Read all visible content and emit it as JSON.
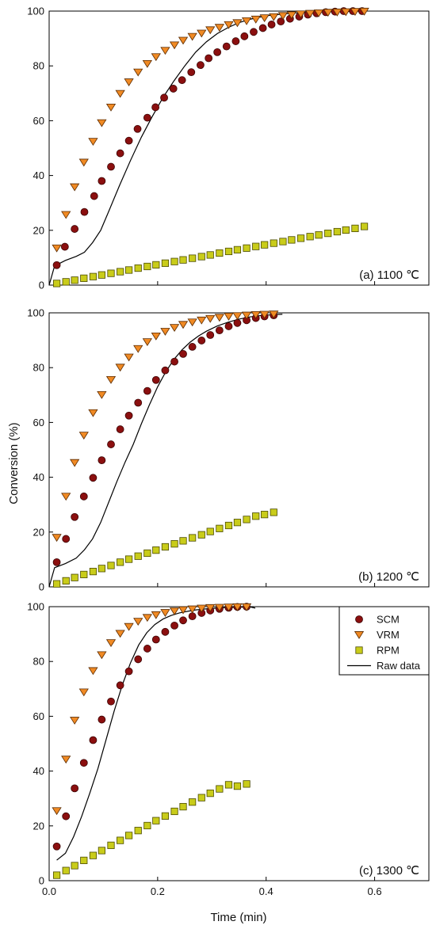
{
  "chart_data": {
    "type": "scatter",
    "ylabel": "Conversion (%)",
    "xlabel": "Time (min)",
    "xlim": [
      0,
      0.7
    ],
    "ylim": [
      0,
      100
    ],
    "xticks": [
      "0.0",
      "0.2",
      "0.4",
      "0.6"
    ],
    "yticks": [
      "0",
      "20",
      "40",
      "60",
      "80",
      "100"
    ],
    "legend": {
      "placement": "top-right of panel (c)",
      "entries": [
        "SCM",
        "VRM",
        "RPM",
        "Raw data"
      ]
    },
    "colors": {
      "SCM": "#8b0f0f",
      "VRM": "#f08a24",
      "RPM": "#c9cc1a",
      "Raw data": "#000000"
    },
    "panels": [
      {
        "label": "(a) 1100 ℃",
        "series": [
          {
            "name": "SCM",
            "x": [
              0.014,
              0.029,
              0.047,
              0.065,
              0.083,
              0.097,
              0.114,
              0.131,
              0.147,
              0.163,
              0.181,
              0.196,
              0.212,
              0.229,
              0.245,
              0.262,
              0.279,
              0.294,
              0.31,
              0.327,
              0.344,
              0.36,
              0.377,
              0.394,
              0.41,
              0.427,
              0.444,
              0.461,
              0.477,
              0.493,
              0.51,
              0.527,
              0.543,
              0.56,
              0.577
            ],
            "y": [
              7.3,
              14.0,
              20.5,
              26.7,
              32.5,
              38.0,
              43.2,
              48.1,
              52.7,
              57.0,
              61.1,
              64.9,
              68.4,
              71.7,
              74.8,
              77.7,
              80.3,
              82.8,
              85.0,
              87.1,
              89.0,
              90.8,
              92.4,
              93.8,
              95.1,
              96.2,
              97.2,
              98.0,
              98.7,
              99.2,
              99.6,
              99.8,
              100.0,
              100.0,
              100.0
            ]
          },
          {
            "name": "VRM",
            "x": [
              0.014,
              0.031,
              0.047,
              0.064,
              0.081,
              0.097,
              0.114,
              0.131,
              0.147,
              0.164,
              0.181,
              0.197,
              0.214,
              0.231,
              0.247,
              0.264,
              0.281,
              0.297,
              0.314,
              0.331,
              0.347,
              0.364,
              0.381,
              0.397,
              0.414,
              0.431,
              0.447,
              0.464,
              0.481,
              0.497,
              0.514,
              0.531,
              0.547,
              0.564,
              0.581
            ],
            "y": [
              13.5,
              25.7,
              35.8,
              44.8,
              52.4,
              59.2,
              64.9,
              69.9,
              74.1,
              77.7,
              80.8,
              83.3,
              85.6,
              87.6,
              89.3,
              90.7,
              91.9,
              93.1,
              94.0,
              95.0,
              95.7,
              96.4,
              97.0,
              97.5,
              97.9,
              98.3,
              98.6,
              98.9,
              99.1,
              99.3,
              99.5,
              99.6,
              99.7,
              99.8,
              99.9
            ]
          },
          {
            "name": "RPM",
            "x": [
              0.014,
              0.031,
              0.047,
              0.064,
              0.081,
              0.097,
              0.114,
              0.131,
              0.147,
              0.164,
              0.181,
              0.197,
              0.214,
              0.231,
              0.247,
              0.264,
              0.281,
              0.297,
              0.314,
              0.331,
              0.347,
              0.364,
              0.381,
              0.397,
              0.414,
              0.431,
              0.447,
              0.464,
              0.481,
              0.497,
              0.514,
              0.531,
              0.547,
              0.564,
              0.581
            ],
            "y": [
              0.6,
              1.2,
              1.8,
              2.5,
              3.1,
              3.7,
              4.3,
              4.9,
              5.5,
              6.2,
              6.8,
              7.4,
              8.0,
              8.6,
              9.2,
              9.8,
              10.4,
              11.0,
              11.7,
              12.3,
              12.9,
              13.5,
              14.1,
              14.7,
              15.3,
              15.9,
              16.5,
              17.1,
              17.7,
              18.3,
              18.9,
              19.5,
              20.1,
              20.7,
              21.4
            ]
          },
          {
            "name": "Raw data",
            "x": [
              0.0,
              0.01,
              0.03,
              0.05,
              0.065,
              0.08,
              0.095,
              0.11,
              0.13,
              0.15,
              0.17,
              0.19,
              0.21,
              0.23,
              0.25,
              0.27,
              0.29,
              0.31,
              0.33,
              0.35,
              0.37,
              0.4,
              0.45,
              0.5,
              0.55,
              0.58
            ],
            "y": [
              0.0,
              7.0,
              9.0,
              10.5,
              12.0,
              15.5,
              20.0,
              27.0,
              36.5,
              45.5,
              54.0,
              61.5,
              68.5,
              74.5,
              80.0,
              85.0,
              88.8,
              91.8,
              94.0,
              95.8,
              97.0,
              98.3,
              99.3,
              99.7,
              99.9,
              100.0
            ]
          }
        ]
      },
      {
        "label": "(b) 1200 ℃",
        "series": [
          {
            "name": "SCM",
            "x": [
              0.014,
              0.031,
              0.047,
              0.064,
              0.081,
              0.097,
              0.114,
              0.131,
              0.147,
              0.164,
              0.181,
              0.197,
              0.214,
              0.231,
              0.247,
              0.264,
              0.281,
              0.297,
              0.314,
              0.331,
              0.347,
              0.364,
              0.381,
              0.397,
              0.414
            ],
            "y": [
              9.0,
              17.5,
              25.5,
              33.0,
              39.8,
              46.2,
              52.0,
              57.5,
              62.5,
              67.2,
              71.5,
              75.5,
              79.0,
              82.2,
              85.0,
              87.6,
              89.9,
              91.9,
              93.6,
              95.1,
              96.3,
              97.3,
              98.1,
              98.7,
              99.1
            ]
          },
          {
            "name": "VRM",
            "x": [
              0.014,
              0.031,
              0.047,
              0.064,
              0.081,
              0.097,
              0.114,
              0.131,
              0.147,
              0.164,
              0.181,
              0.197,
              0.214,
              0.231,
              0.247,
              0.264,
              0.281,
              0.297,
              0.314,
              0.331,
              0.347,
              0.364,
              0.381,
              0.397,
              0.414
            ],
            "y": [
              18.0,
              33.0,
              45.3,
              55.3,
              63.5,
              70.1,
              75.6,
              80.1,
              83.8,
              86.9,
              89.4,
              91.5,
              93.2,
              94.6,
              95.7,
              96.6,
              97.3,
              97.9,
              98.3,
              98.7,
              98.9,
              99.1,
              99.3,
              99.4,
              99.5
            ]
          },
          {
            "name": "RPM",
            "x": [
              0.014,
              0.031,
              0.047,
              0.064,
              0.081,
              0.097,
              0.114,
              0.131,
              0.147,
              0.164,
              0.181,
              0.197,
              0.214,
              0.231,
              0.247,
              0.264,
              0.281,
              0.297,
              0.314,
              0.331,
              0.347,
              0.364,
              0.381,
              0.397,
              0.414
            ],
            "y": [
              1.1,
              2.2,
              3.4,
              4.5,
              5.6,
              6.7,
              7.8,
              9.0,
              10.1,
              11.2,
              12.3,
              13.4,
              14.6,
              15.7,
              16.8,
              17.9,
              19.0,
              20.2,
              21.3,
              22.4,
              23.5,
              24.6,
              25.8,
              26.4,
              27.2
            ]
          },
          {
            "name": "Raw data",
            "x": [
              0.0,
              0.01,
              0.03,
              0.05,
              0.065,
              0.08,
              0.095,
              0.11,
              0.125,
              0.14,
              0.155,
              0.17,
              0.185,
              0.2,
              0.215,
              0.23,
              0.245,
              0.26,
              0.275,
              0.29,
              0.31,
              0.33,
              0.35,
              0.37,
              0.39,
              0.41,
              0.43
            ],
            "y": [
              0.0,
              7.0,
              8.5,
              10.5,
              13.5,
              17.5,
              23.5,
              31.0,
              38.5,
              45.5,
              52.0,
              59.5,
              66.5,
              73.0,
              78.5,
              83.0,
              86.5,
              89.3,
              91.5,
              93.3,
              95.2,
              96.6,
              97.7,
              98.5,
              99.0,
              99.3,
              99.5
            ]
          }
        ]
      },
      {
        "label": "(c) 1300 ℃",
        "series": [
          {
            "name": "SCM",
            "x": [
              0.014,
              0.031,
              0.047,
              0.064,
              0.081,
              0.097,
              0.114,
              0.131,
              0.147,
              0.164,
              0.181,
              0.197,
              0.214,
              0.231,
              0.247,
              0.264,
              0.281,
              0.297,
              0.314,
              0.331,
              0.347,
              0.364
            ],
            "y": [
              12.5,
              23.5,
              33.7,
              43.0,
              51.3,
              58.8,
              65.4,
              71.3,
              76.4,
              80.8,
              84.7,
              88.0,
              90.8,
              93.1,
              95.0,
              96.5,
              97.7,
              98.6,
              99.2,
              99.6,
              99.9,
              100.0
            ]
          },
          {
            "name": "VRM",
            "x": [
              0.014,
              0.031,
              0.047,
              0.064,
              0.081,
              0.097,
              0.114,
              0.131,
              0.147,
              0.164,
              0.181,
              0.197,
              0.214,
              0.231,
              0.247,
              0.264,
              0.281,
              0.297,
              0.314,
              0.331,
              0.347,
              0.364
            ],
            "y": [
              25.5,
              44.3,
              58.5,
              68.8,
              76.6,
              82.4,
              86.8,
              90.2,
              92.7,
              94.6,
              96.0,
              97.0,
              97.8,
              98.4,
              98.8,
              99.1,
              99.4,
              99.6,
              99.7,
              99.8,
              99.9,
              99.9
            ]
          },
          {
            "name": "RPM",
            "x": [
              0.014,
              0.031,
              0.047,
              0.064,
              0.081,
              0.097,
              0.114,
              0.131,
              0.147,
              0.164,
              0.181,
              0.197,
              0.214,
              0.231,
              0.247,
              0.264,
              0.281,
              0.297,
              0.314,
              0.331,
              0.347,
              0.364
            ],
            "y": [
              2.0,
              3.7,
              5.5,
              7.4,
              9.2,
              11.0,
              12.9,
              14.7,
              16.5,
              18.3,
              20.1,
              21.9,
              23.6,
              25.3,
              27.0,
              28.7,
              30.3,
              31.9,
              33.5,
              35.0,
              34.5,
              35.3
            ]
          },
          {
            "name": "Raw data",
            "x": [
              0.014,
              0.03,
              0.045,
              0.06,
              0.075,
              0.09,
              0.105,
              0.12,
              0.135,
              0.15,
              0.165,
              0.18,
              0.195,
              0.21,
              0.225,
              0.24,
              0.255,
              0.27,
              0.29,
              0.31,
              0.33,
              0.35,
              0.37,
              0.38
            ],
            "y": [
              7.5,
              10.0,
              16.0,
              23.5,
              32.0,
              41.0,
              51.5,
              62.0,
              71.5,
              79.5,
              86.0,
              90.5,
              93.5,
              95.5,
              96.8,
              97.7,
              98.3,
              98.8,
              99.2,
              99.5,
              99.7,
              99.8,
              99.9,
              99.5
            ]
          }
        ]
      }
    ]
  }
}
